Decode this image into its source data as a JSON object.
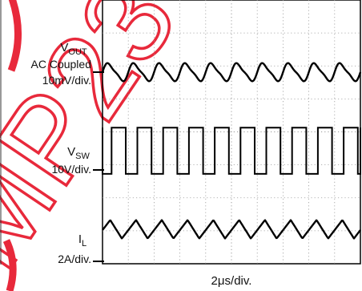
{
  "chart_data": {
    "type": "line",
    "title": "",
    "xlabel": "2μs/div.",
    "grid": true,
    "x_divisions": 10,
    "y_divisions": 8,
    "watermark": "MP23",
    "watermark_color": "#e8293b",
    "trace_color": "#000000",
    "grid_color": "#9a9a9a",
    "channels": [
      {
        "key": "vout",
        "name_main": "V",
        "name_sub": "OUT",
        "coupling": "AC Coupled",
        "scale": "10mV/div.",
        "waveform": "sine-ripple",
        "cycles": 10,
        "amplitude_div": 0.25
      },
      {
        "key": "vsw",
        "name_main": "V",
        "name_sub": "SW",
        "scale": "10V/div.",
        "waveform": "square",
        "cycles": 10,
        "amplitude_div": 1.4,
        "duty": 0.55
      },
      {
        "key": "il",
        "name_main": "I",
        "name_sub": "L",
        "scale": "2A/div.",
        "waveform": "triangle",
        "cycles": 10,
        "amplitude_div": 0.28
      }
    ]
  }
}
